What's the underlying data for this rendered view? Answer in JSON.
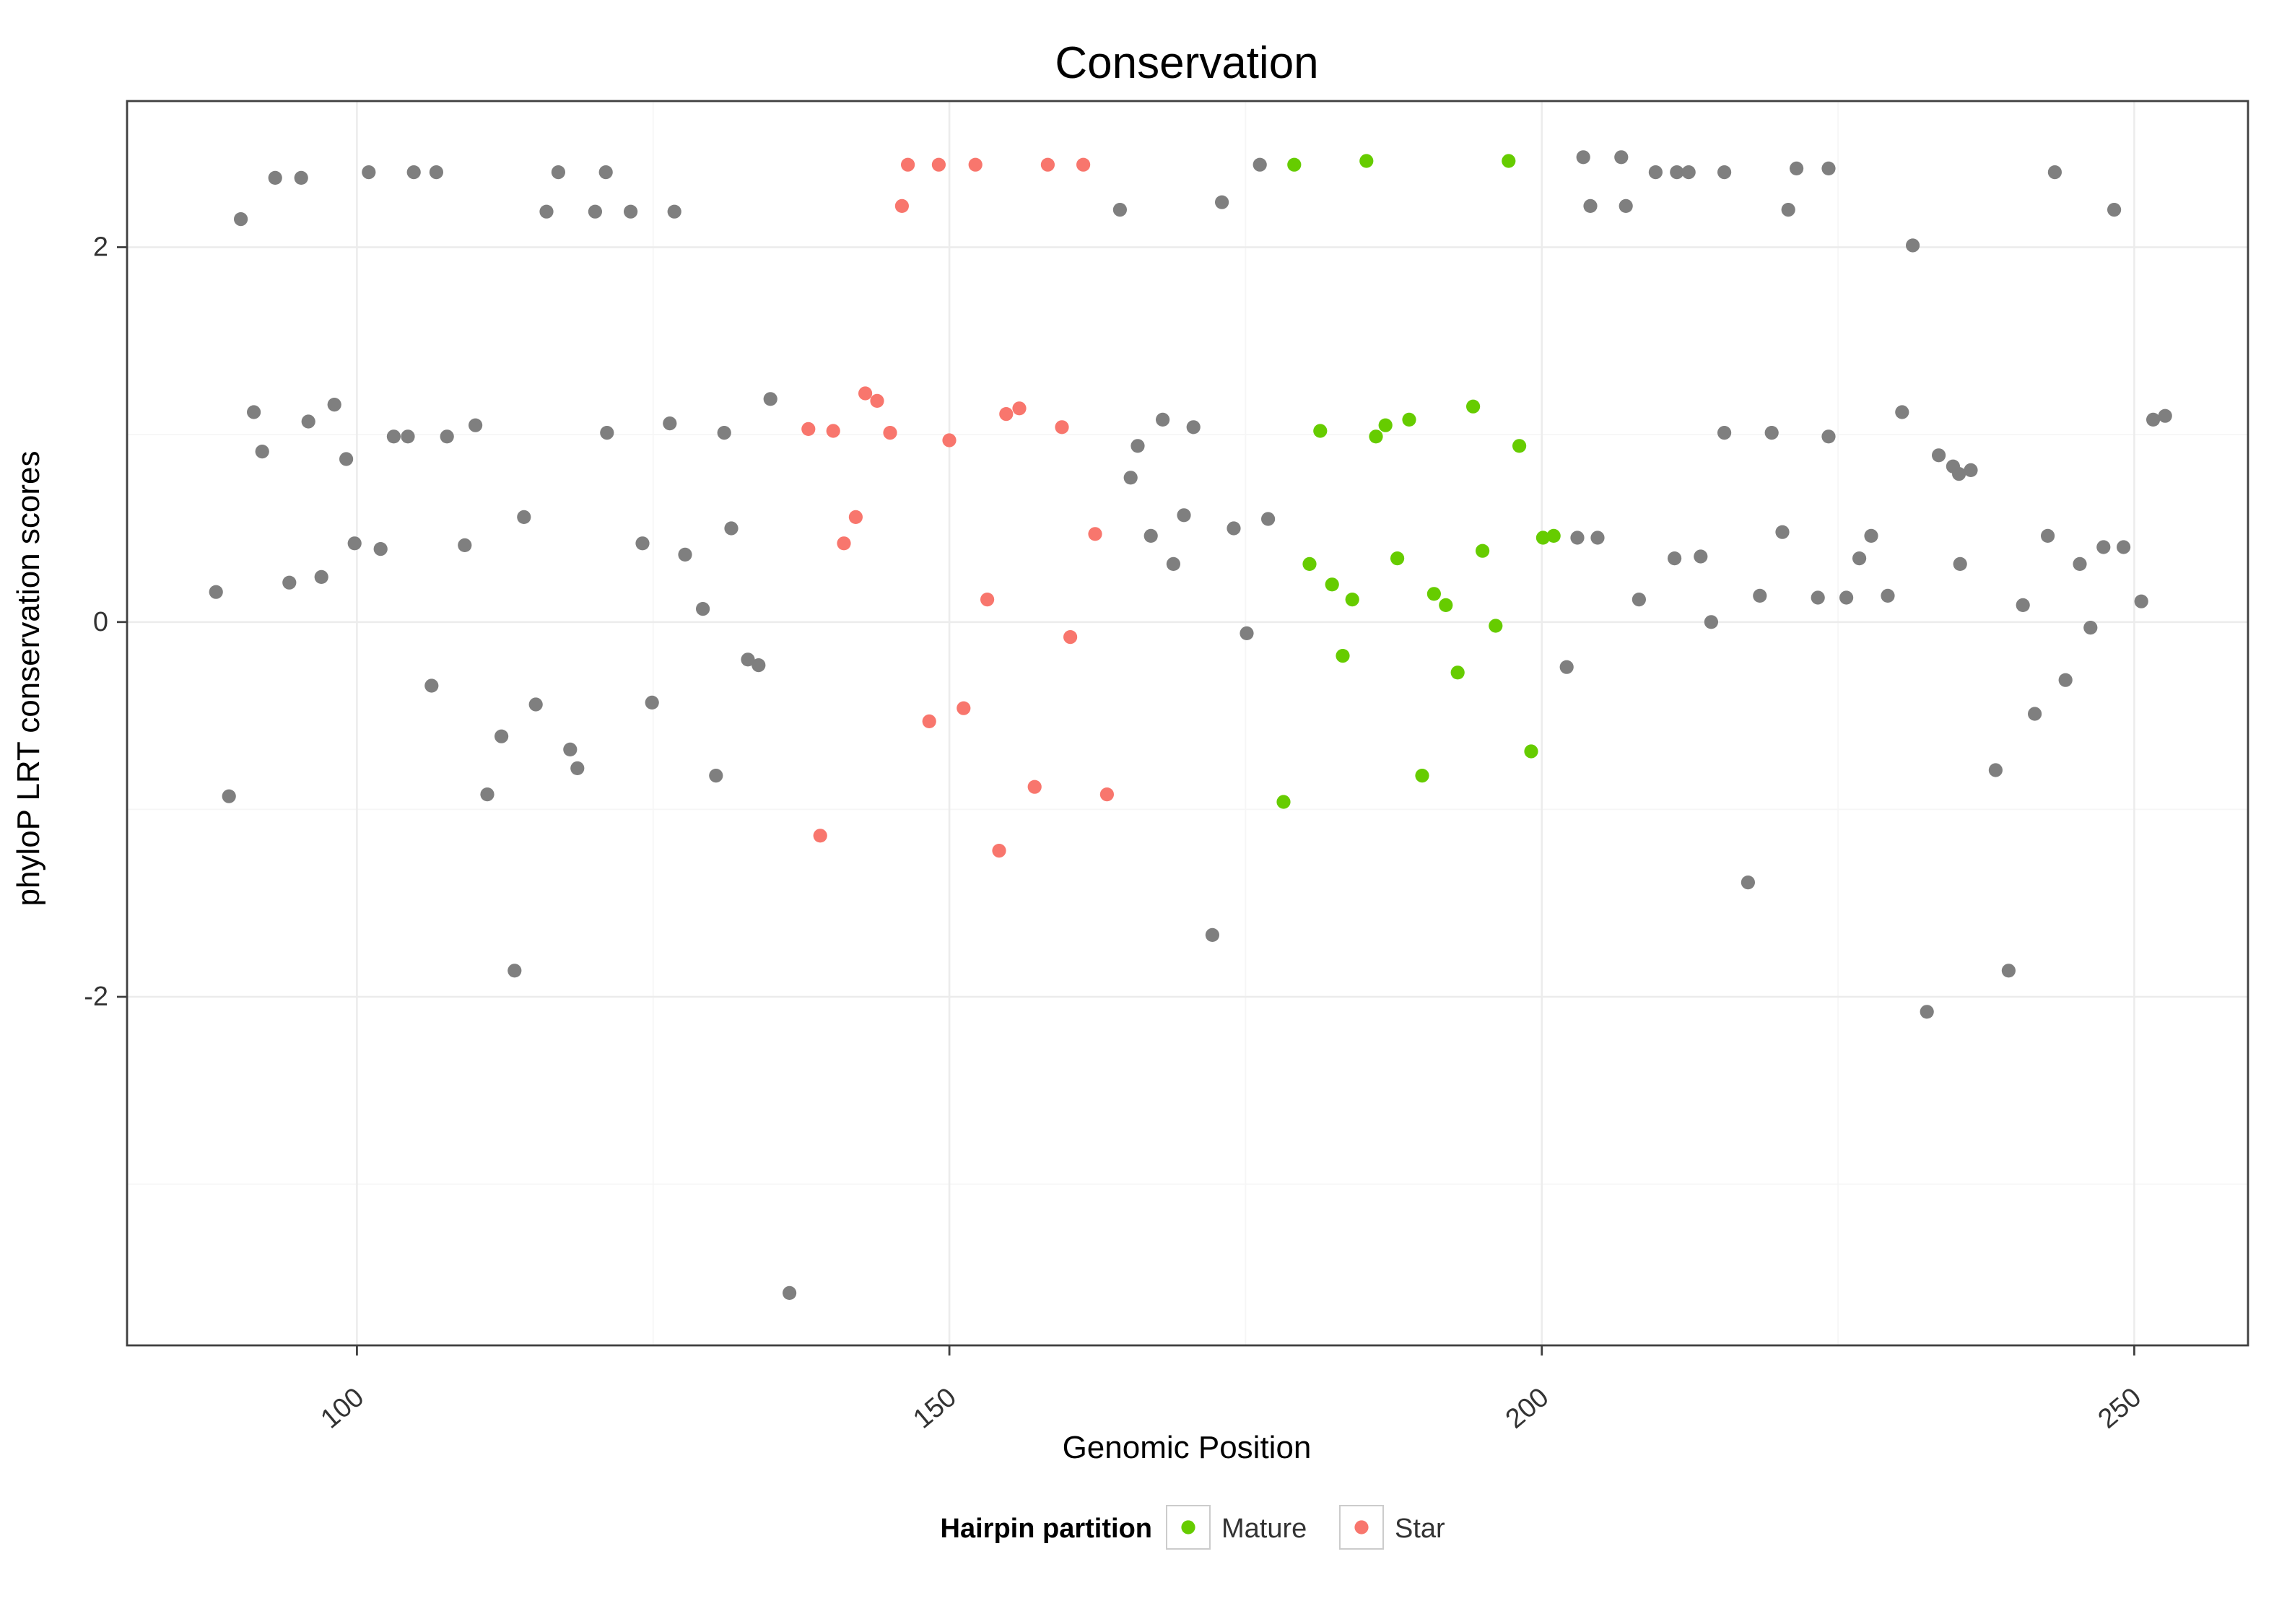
{
  "chart_data": {
    "type": "scatter",
    "title": "Conservation",
    "xlabel": "Genomic Position",
    "ylabel": "phyloP LRT conservation scores",
    "xlim": [
      80.6,
      259.6
    ],
    "ylim": [
      -3.86,
      2.78
    ],
    "x_ticks": [
      100,
      150,
      200,
      250
    ],
    "y_ticks": [
      -2,
      0,
      2
    ],
    "x_minor_ticks": [
      125,
      175,
      225
    ],
    "y_minor_ticks": [
      -3,
      -1,
      1
    ],
    "grid": true,
    "point_radius": 4.8,
    "colors": {
      "panel_bg": "#FFFFFF",
      "grid_major": "#ECECEC",
      "grid_minor": "#F6F6F6",
      "border": "#404040",
      "tick_text": "#333333",
      "accent_mature": "#66CC00",
      "accent_star": "#F8766D",
      "accent_other": "#7F7F7F"
    },
    "legend": {
      "title": "Hairpin partition",
      "position": "bottom",
      "entries": [
        {
          "label": "Mature",
          "color": "#66CC00"
        },
        {
          "label": "Star",
          "color": "#F8766D"
        }
      ]
    },
    "series": [
      {
        "key": "other",
        "name": "other",
        "color": "#7F7F7F",
        "in_legend": false,
        "points": [
          [
            88.1,
            0.16
          ],
          [
            89.2,
            -0.93
          ],
          [
            90.2,
            2.15
          ],
          [
            91.3,
            1.12
          ],
          [
            92.0,
            0.91
          ],
          [
            93.1,
            2.37
          ],
          [
            94.3,
            0.21
          ],
          [
            95.3,
            2.37
          ],
          [
            95.9,
            1.07
          ],
          [
            97.0,
            0.24
          ],
          [
            98.1,
            1.16
          ],
          [
            99.1,
            0.87
          ],
          [
            99.8,
            0.42
          ],
          [
            101.0,
            2.4
          ],
          [
            102.0,
            0.39
          ],
          [
            103.1,
            0.99
          ],
          [
            104.3,
            0.99
          ],
          [
            104.8,
            2.4
          ],
          [
            106.3,
            -0.34
          ],
          [
            106.7,
            2.4
          ],
          [
            107.6,
            0.99
          ],
          [
            109.1,
            0.41
          ],
          [
            110.0,
            1.05
          ],
          [
            111.0,
            -0.92
          ],
          [
            112.2,
            -0.61
          ],
          [
            113.3,
            -1.86
          ],
          [
            114.1,
            0.56
          ],
          [
            115.1,
            -0.44
          ],
          [
            116.0,
            2.19
          ],
          [
            117.0,
            2.4
          ],
          [
            118.0,
            -0.68
          ],
          [
            118.6,
            -0.78
          ],
          [
            120.1,
            2.19
          ],
          [
            121.0,
            2.4
          ],
          [
            121.1,
            1.01
          ],
          [
            123.1,
            2.19
          ],
          [
            124.1,
            0.42
          ],
          [
            124.9,
            -0.43
          ],
          [
            126.4,
            1.06
          ],
          [
            126.8,
            2.19
          ],
          [
            127.7,
            0.36
          ],
          [
            129.2,
            0.07
          ],
          [
            130.3,
            -0.82
          ],
          [
            131.0,
            1.01
          ],
          [
            131.6,
            0.5
          ],
          [
            133.0,
            -0.2
          ],
          [
            133.9,
            -0.23
          ],
          [
            134.9,
            1.19
          ],
          [
            136.5,
            -3.58
          ],
          [
            164.4,
            2.2
          ],
          [
            165.3,
            0.77
          ],
          [
            165.9,
            0.94
          ],
          [
            167.0,
            0.46
          ],
          [
            168.0,
            1.08
          ],
          [
            168.9,
            0.31
          ],
          [
            169.8,
            0.57
          ],
          [
            170.6,
            1.04
          ],
          [
            172.2,
            -1.67
          ],
          [
            173.0,
            2.24
          ],
          [
            174.0,
            0.5
          ],
          [
            175.1,
            -0.06
          ],
          [
            176.2,
            2.44
          ],
          [
            176.9,
            0.55
          ],
          [
            202.1,
            -0.24
          ],
          [
            203.0,
            0.45
          ],
          [
            203.5,
            2.48
          ],
          [
            204.1,
            2.22
          ],
          [
            204.7,
            0.45
          ],
          [
            206.7,
            2.48
          ],
          [
            207.1,
            2.22
          ],
          [
            208.2,
            0.12
          ],
          [
            209.6,
            2.4
          ],
          [
            211.2,
            0.34
          ],
          [
            211.4,
            2.4
          ],
          [
            212.4,
            2.4
          ],
          [
            213.4,
            0.35
          ],
          [
            214.3,
            0.0
          ],
          [
            215.4,
            2.4
          ],
          [
            215.4,
            1.01
          ],
          [
            217.4,
            -1.39
          ],
          [
            218.4,
            0.14
          ],
          [
            219.4,
            1.01
          ],
          [
            220.3,
            0.48
          ],
          [
            220.8,
            2.2
          ],
          [
            221.5,
            2.42
          ],
          [
            223.3,
            0.13
          ],
          [
            224.2,
            2.42
          ],
          [
            224.2,
            0.99
          ],
          [
            225.7,
            0.13
          ],
          [
            226.8,
            0.34
          ],
          [
            227.8,
            0.46
          ],
          [
            229.2,
            0.14
          ],
          [
            230.4,
            1.12
          ],
          [
            231.3,
            2.01
          ],
          [
            232.5,
            -2.08
          ],
          [
            233.5,
            0.89
          ],
          [
            234.7,
            0.83
          ],
          [
            235.2,
            0.79
          ],
          [
            235.3,
            0.31
          ],
          [
            236.2,
            0.81
          ],
          [
            238.3,
            -0.79
          ],
          [
            239.4,
            -1.86
          ],
          [
            240.6,
            0.09
          ],
          [
            241.6,
            -0.49
          ],
          [
            242.7,
            0.46
          ],
          [
            243.3,
            2.4
          ],
          [
            244.2,
            -0.31
          ],
          [
            245.4,
            0.31
          ],
          [
            246.3,
            -0.03
          ],
          [
            247.4,
            0.4
          ],
          [
            248.3,
            2.2
          ],
          [
            249.1,
            0.4
          ],
          [
            250.6,
            0.11
          ],
          [
            251.6,
            1.08
          ],
          [
            252.6,
            1.1
          ]
        ]
      },
      {
        "key": "star",
        "name": "Star",
        "color": "#F8766D",
        "in_legend": true,
        "points": [
          [
            138.1,
            1.03
          ],
          [
            139.1,
            -1.14
          ],
          [
            140.2,
            1.02
          ],
          [
            141.1,
            0.42
          ],
          [
            142.1,
            0.56
          ],
          [
            142.9,
            1.22
          ],
          [
            143.9,
            1.18
          ],
          [
            145.0,
            1.01
          ],
          [
            146.0,
            2.22
          ],
          [
            146.5,
            2.44
          ],
          [
            148.3,
            -0.53
          ],
          [
            149.1,
            2.44
          ],
          [
            150.0,
            0.97
          ],
          [
            151.2,
            -0.46
          ],
          [
            152.2,
            2.44
          ],
          [
            153.2,
            0.12
          ],
          [
            154.2,
            -1.22
          ],
          [
            154.8,
            1.11
          ],
          [
            155.9,
            1.14
          ],
          [
            157.2,
            -0.88
          ],
          [
            158.3,
            2.44
          ],
          [
            159.5,
            1.04
          ],
          [
            160.2,
            -0.08
          ],
          [
            161.3,
            2.44
          ],
          [
            162.3,
            0.47
          ],
          [
            163.3,
            -0.92
          ]
        ]
      },
      {
        "key": "mature",
        "name": "Mature",
        "color": "#66CC00",
        "in_legend": true,
        "points": [
          [
            178.2,
            -0.96
          ],
          [
            179.1,
            2.44
          ],
          [
            180.4,
            0.31
          ],
          [
            181.3,
            1.02
          ],
          [
            182.3,
            0.2
          ],
          [
            183.2,
            -0.18
          ],
          [
            184.0,
            0.12
          ],
          [
            185.2,
            2.46
          ],
          [
            186.0,
            0.99
          ],
          [
            186.8,
            1.05
          ],
          [
            187.8,
            0.34
          ],
          [
            188.8,
            1.08
          ],
          [
            189.9,
            -0.82
          ],
          [
            190.9,
            0.15
          ],
          [
            191.9,
            0.09
          ],
          [
            192.9,
            -0.27
          ],
          [
            194.2,
            1.15
          ],
          [
            195.0,
            0.38
          ],
          [
            196.1,
            -0.02
          ],
          [
            197.2,
            2.46
          ],
          [
            198.1,
            0.94
          ],
          [
            199.1,
            -0.69
          ],
          [
            200.1,
            0.45
          ],
          [
            201.0,
            0.46
          ]
        ]
      }
    ]
  }
}
